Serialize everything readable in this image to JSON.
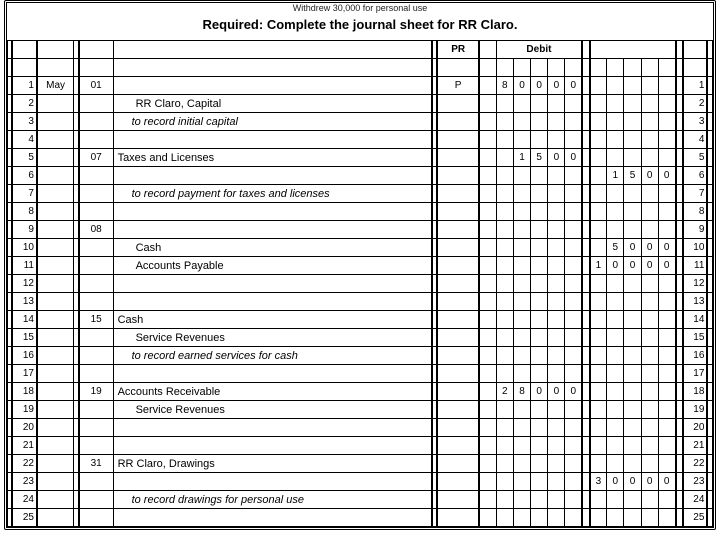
{
  "title_line1": "Withdrew 30,000 for personal use",
  "title_line2": "Required: Complete the journal sheet for RR Claro.",
  "columns": {
    "pr": "PR",
    "debit": "Debit"
  },
  "rows": [
    {
      "n": "1",
      "mon": "May",
      "day": "01",
      "desc": "",
      "pr": "P",
      "debit": [
        "8",
        "0",
        "0",
        "0",
        "0"
      ],
      "credit": [
        "",
        "",
        "",
        "",
        ""
      ],
      "rn": "1"
    },
    {
      "n": "2",
      "desc": "RR Claro, Capital",
      "style": "desc-ind",
      "debit": [
        "",
        "",
        "",
        "",
        ""
      ],
      "credit": [
        "",
        "",
        "",
        "",
        ""
      ],
      "rn": "2"
    },
    {
      "n": "3",
      "desc": "to record initial capital",
      "style": "desc-i",
      "debit": [
        "",
        "",
        "",
        "",
        ""
      ],
      "credit": [
        "",
        "",
        "",
        "",
        ""
      ],
      "rn": "3"
    },
    {
      "n": "4",
      "desc": "",
      "debit": [
        "",
        "",
        "",
        "",
        ""
      ],
      "credit": [
        "",
        "",
        "",
        "",
        ""
      ],
      "rn": "4"
    },
    {
      "n": "5",
      "day": "07",
      "desc": "Taxes and Licenses",
      "style": "desc",
      "debit": [
        "",
        "1",
        "5",
        "0",
        "0"
      ],
      "credit": [
        "",
        "",
        "",
        "",
        ""
      ],
      "rn": "5"
    },
    {
      "n": "6",
      "desc": "",
      "debit": [
        "",
        "",
        "",
        "",
        ""
      ],
      "credit": [
        "",
        "1",
        "5",
        "0",
        "0"
      ],
      "rn": "6"
    },
    {
      "n": "7",
      "desc": "to record payment for taxes and licenses",
      "style": "desc-i",
      "debit": [
        "",
        "",
        "",
        "",
        ""
      ],
      "credit": [
        "",
        "",
        "",
        "",
        ""
      ],
      "rn": "7"
    },
    {
      "n": "8",
      "desc": "",
      "debit": [
        "",
        "",
        "",
        "",
        ""
      ],
      "credit": [
        "",
        "",
        "",
        "",
        ""
      ],
      "rn": "8"
    },
    {
      "n": "9",
      "day": "08",
      "desc": "",
      "debit": [
        "",
        "",
        "",
        "",
        ""
      ],
      "credit": [
        "",
        "",
        "",
        "",
        ""
      ],
      "rn": "9"
    },
    {
      "n": "10",
      "desc": "Cash",
      "style": "desc-ind",
      "debit": [
        "",
        "",
        "",
        "",
        ""
      ],
      "credit": [
        "",
        "5",
        "0",
        "0",
        "0"
      ],
      "rn": "10"
    },
    {
      "n": "11",
      "desc": "Accounts Payable",
      "style": "desc-ind",
      "debit": [
        "",
        "",
        "",
        "",
        ""
      ],
      "credit": [
        "1",
        "0",
        "0",
        "0",
        "0"
      ],
      "rn": "11"
    },
    {
      "n": "12",
      "desc": "",
      "debit": [
        "",
        "",
        "",
        "",
        ""
      ],
      "credit": [
        "",
        "",
        "",
        "",
        ""
      ],
      "rn": "12"
    },
    {
      "n": "13",
      "desc": "",
      "debit": [
        "",
        "",
        "",
        "",
        ""
      ],
      "credit": [
        "",
        "",
        "",
        "",
        ""
      ],
      "rn": "13"
    },
    {
      "n": "14",
      "day": "15",
      "desc": "Cash",
      "style": "desc",
      "debit": [
        "",
        "",
        "",
        "",
        ""
      ],
      "credit": [
        "",
        "",
        "",
        "",
        ""
      ],
      "rn": "14"
    },
    {
      "n": "15",
      "desc": "Service Revenues",
      "style": "desc-ind",
      "debit": [
        "",
        "",
        "",
        "",
        ""
      ],
      "credit": [
        "",
        "",
        "",
        "",
        ""
      ],
      "rn": "15"
    },
    {
      "n": "16",
      "desc": "to record earned services for cash",
      "style": "desc-i",
      "debit": [
        "",
        "",
        "",
        "",
        ""
      ],
      "credit": [
        "",
        "",
        "",
        "",
        ""
      ],
      "rn": "16"
    },
    {
      "n": "17",
      "desc": "",
      "debit": [
        "",
        "",
        "",
        "",
        ""
      ],
      "credit": [
        "",
        "",
        "",
        "",
        ""
      ],
      "rn": "17"
    },
    {
      "n": "18",
      "day": "19",
      "desc": "Accounts Receivable",
      "style": "desc",
      "debit": [
        "2",
        "8",
        "0",
        "0",
        "0"
      ],
      "credit": [
        "",
        "",
        "",
        "",
        ""
      ],
      "rn": "18"
    },
    {
      "n": "19",
      "desc": "Service Revenues",
      "style": "desc-ind",
      "debit": [
        "",
        "",
        "",
        "",
        ""
      ],
      "credit": [
        "",
        "",
        "",
        "",
        ""
      ],
      "rn": "19"
    },
    {
      "n": "20",
      "desc": "",
      "debit": [
        "",
        "",
        "",
        "",
        ""
      ],
      "credit": [
        "",
        "",
        "",
        "",
        ""
      ],
      "rn": "20"
    },
    {
      "n": "21",
      "desc": "",
      "debit": [
        "",
        "",
        "",
        "",
        ""
      ],
      "credit": [
        "",
        "",
        "",
        "",
        ""
      ],
      "rn": "21"
    },
    {
      "n": "22",
      "day": "31",
      "desc": "RR Claro, Drawings",
      "style": "desc",
      "debit": [
        "",
        "",
        "",
        "",
        ""
      ],
      "credit": [
        "",
        "",
        "",
        "",
        ""
      ],
      "rn": "22"
    },
    {
      "n": "23",
      "desc": "",
      "debit": [
        "",
        "",
        "",
        "",
        ""
      ],
      "credit": [
        "3",
        "0",
        "0",
        "0",
        "0"
      ],
      "rn": "23"
    },
    {
      "n": "24",
      "desc": "to record drawings for personal use",
      "style": "desc-i",
      "debit": [
        "",
        "",
        "",
        "",
        ""
      ],
      "credit": [
        "",
        "",
        "",
        "",
        ""
      ],
      "rn": "24"
    },
    {
      "n": "25",
      "desc": "",
      "debit": [
        "",
        "",
        "",
        "",
        ""
      ],
      "credit": [
        "",
        "",
        "",
        "",
        ""
      ],
      "rn": "25"
    }
  ]
}
